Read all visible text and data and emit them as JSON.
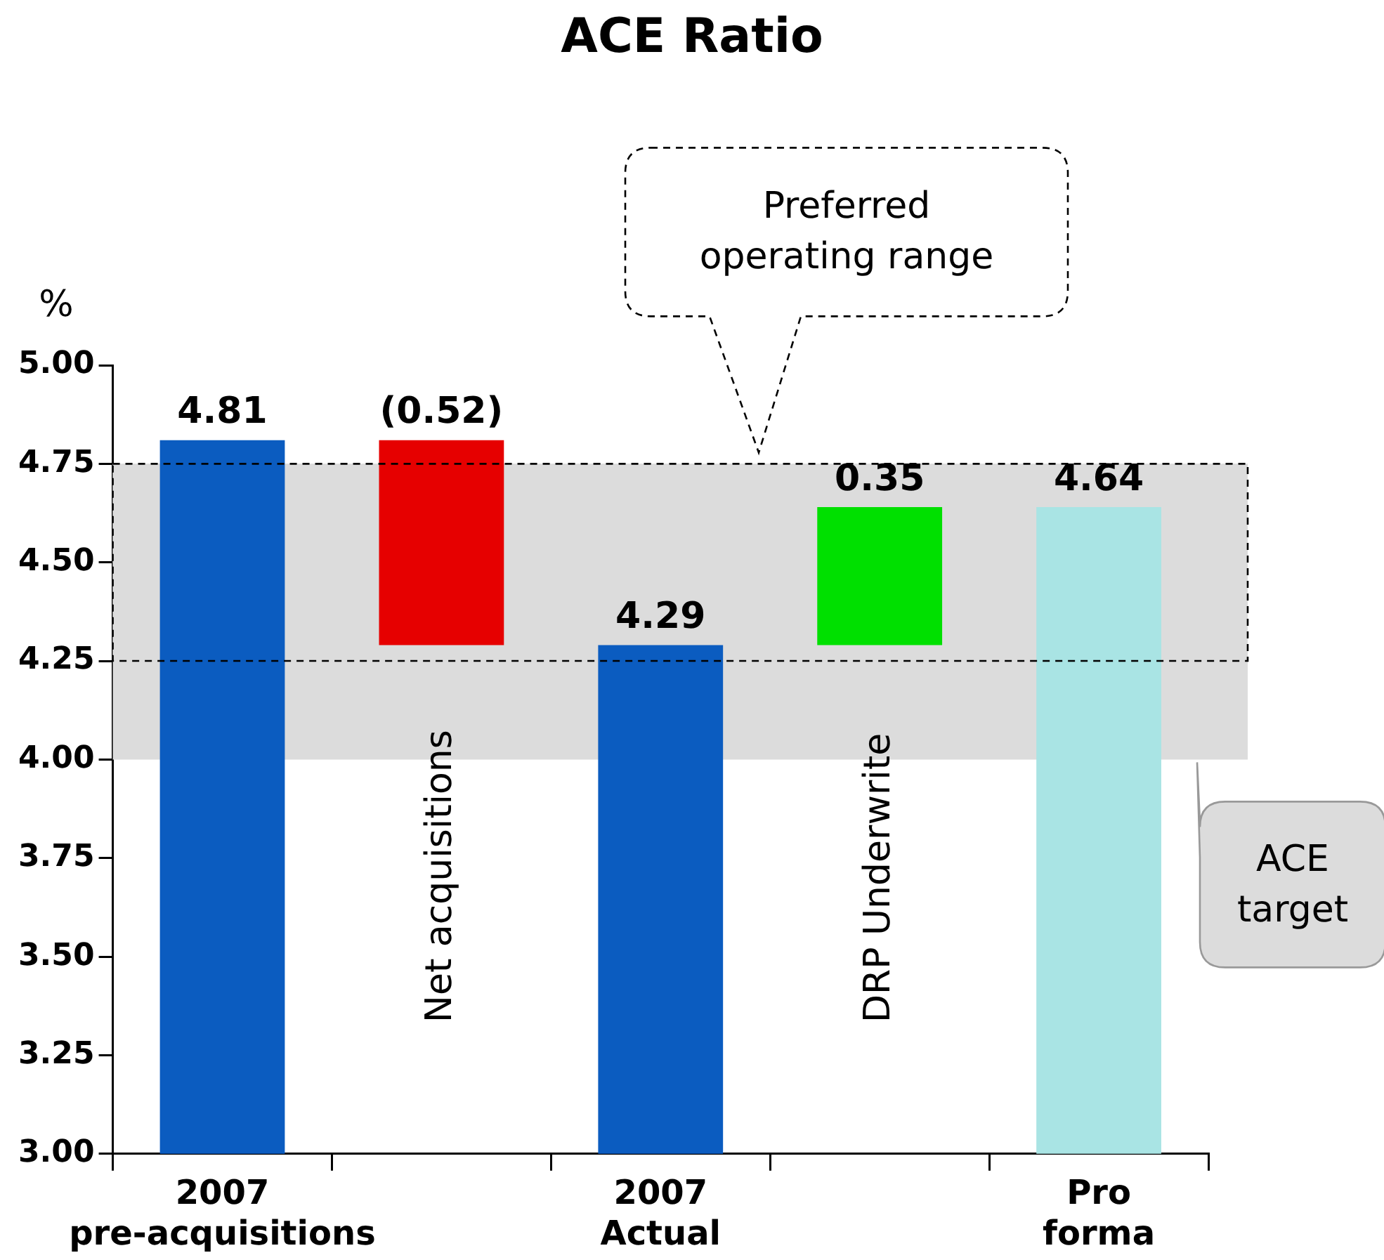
{
  "chart_data": {
    "type": "bar",
    "title": "ACE Ratio",
    "ylabel": "%",
    "categories": [
      "2007 pre-acquisitions",
      "Net acquisitions",
      "2007 Actual",
      "DRP Underwrite",
      "Pro forma"
    ],
    "values": [
      4.81,
      -0.52,
      4.29,
      0.35,
      4.64
    ],
    "base": [
      null,
      4.81,
      null,
      4.29,
      null
    ],
    "value_labels": [
      "4.81",
      "(0.52)",
      "4.29",
      "0.35",
      "4.64"
    ],
    "colors": [
      "#0b5cc0",
      "#e60000",
      "#0b5cc0",
      "#00e000",
      "#a9e4e4"
    ],
    "ylim": [
      3,
      5
    ],
    "yticks": [
      {
        "value": 3,
        "label": "3.00"
      },
      {
        "value": 3.25,
        "label": "3.25"
      },
      {
        "value": 3.5,
        "label": "3.50"
      },
      {
        "value": 3.75,
        "label": "3.75"
      },
      {
        "value": 4,
        "label": "4.00"
      },
      {
        "value": 4.25,
        "label": "4.25"
      },
      {
        "value": 4.5,
        "label": "4.50"
      },
      {
        "value": 4.75,
        "label": "4.75"
      },
      {
        "value": 5,
        "label": "5.00"
      }
    ],
    "bands": [
      {
        "axis": "y",
        "from": 4,
        "to": 4.75,
        "label": "ACE target",
        "color": "#dcdcdc"
      },
      {
        "axis": "y",
        "from": 4.25,
        "to": 4.75,
        "color": "#dcdcdc"
      }
    ],
    "annotations": [
      "Preferred operating range"
    ],
    "grid": false,
    "legend": false
  }
}
